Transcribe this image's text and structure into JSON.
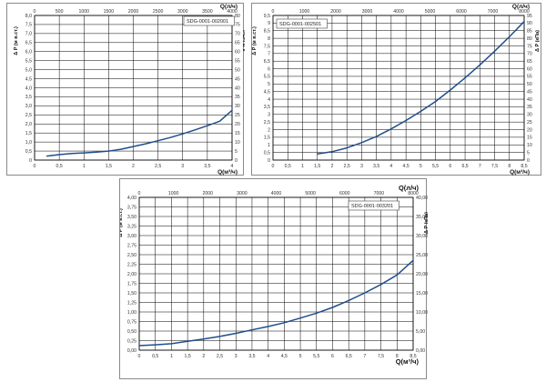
{
  "chart_data": [
    {
      "type": "line",
      "code": "SDG-0001-002001",
      "xlabel": "Q(м³/ч)",
      "x2label": "Q(л/ч)",
      "ylabel": "Δ P (м в.ст.)",
      "y2label": "Δ P (кПа)",
      "xlim": [
        0,
        4
      ],
      "x2lim": [
        0,
        4000
      ],
      "ylim": [
        0,
        8
      ],
      "y2lim": [
        0,
        80
      ],
      "x_ticks": [
        "0",
        "0,5",
        "1",
        "1,5",
        "2",
        "2,5",
        "3",
        "3,5",
        "4"
      ],
      "x2_ticks": [
        "0",
        "500",
        "1000",
        "1500",
        "2000",
        "2500",
        "3000",
        "3500",
        "4000"
      ],
      "y_ticks": [
        "0",
        "0,5",
        "1,0",
        "1,5",
        "2,0",
        "2,5",
        "3,0",
        "3,5",
        "4,0",
        "4,5",
        "5,0",
        "5,5",
        "6,0",
        "6,5",
        "7,0",
        "7,5",
        "8,0"
      ],
      "y2_ticks": [
        "0",
        "5",
        "10",
        "15",
        "20",
        "25",
        "30",
        "35",
        "40",
        "45",
        "50",
        "55",
        "60",
        "65",
        "70",
        "75",
        "80"
      ],
      "series": [
        {
          "x": [
            0.25,
            0.5,
            0.75,
            1.0,
            1.25,
            1.5,
            1.75,
            2.0,
            2.25,
            2.5,
            2.75,
            3.0,
            3.25,
            3.5,
            3.75,
            4.0
          ],
          "y": [
            0.22,
            0.3,
            0.36,
            0.4,
            0.44,
            0.5,
            0.6,
            0.75,
            0.9,
            1.07,
            1.25,
            1.45,
            1.67,
            1.9,
            2.15,
            2.75
          ]
        }
      ]
    },
    {
      "type": "line",
      "code": "SDG-0001-002501",
      "xlabel": "Q(м³/ч)",
      "x2label": "Q(л/ч)",
      "ylabel": "Δ P (м в.ст.)",
      "y2label": "Δ P (кПа)",
      "xlim": [
        0,
        8.5
      ],
      "x2lim": [
        0,
        8500
      ],
      "ylim": [
        0,
        9.5
      ],
      "y2lim": [
        0,
        95
      ],
      "x_ticks": [
        "0",
        "0,5",
        "1",
        "1,5",
        "2",
        "2,5",
        "3",
        "3,5",
        "4",
        "4,5",
        "5",
        "5,5",
        "6",
        "6,5",
        "7",
        "7,5",
        "8",
        "8,5"
      ],
      "x2_ticks": [
        "0",
        "1000",
        "2000",
        "3000",
        "4000",
        "5000",
        "6000",
        "7000",
        "8000"
      ],
      "y_ticks": [
        "0",
        "0,5",
        "1",
        "1,5",
        "2",
        "2,5",
        "3",
        "3,5",
        "4",
        "4,5",
        "5",
        "5,5",
        "6",
        "6,5",
        "7",
        "7,5",
        "8",
        "8,5",
        "9",
        "9,5"
      ],
      "y2_ticks": [
        "0",
        "5",
        "10",
        "15",
        "20",
        "25",
        "30",
        "35",
        "40",
        "45",
        "50",
        "55",
        "60",
        "65",
        "70",
        "75",
        "80",
        "85",
        "90",
        "95"
      ],
      "series": [
        {
          "x": [
            1.5,
            2.0,
            2.5,
            3.0,
            3.5,
            4.0,
            4.5,
            5.0,
            5.5,
            6.0,
            6.5,
            7.0,
            7.5,
            8.0,
            8.5
          ],
          "y": [
            0.4,
            0.55,
            0.8,
            1.15,
            1.55,
            2.05,
            2.6,
            3.2,
            3.85,
            4.6,
            5.4,
            6.25,
            7.15,
            8.1,
            9.1
          ]
        }
      ]
    },
    {
      "type": "line",
      "code": "SDG-0001-003201",
      "xlabel": "Q(м³/ч)",
      "x2label": "Q(л/ч)",
      "ylabel": "Δ P (м в.ст.)",
      "y2label": "Δ P (кПа)",
      "xlim": [
        0,
        8.5
      ],
      "x2lim": [
        0,
        8500
      ],
      "ylim": [
        0,
        4
      ],
      "y2lim": [
        0,
        40
      ],
      "x_ticks": [
        "0",
        "0,5",
        "1",
        "1,5",
        "2",
        "2,5",
        "3",
        "3,5",
        "4",
        "4,5",
        "5",
        "5,5",
        "6",
        "6,5",
        "7",
        "7,5",
        "8",
        "8,5"
      ],
      "x2_ticks": [
        "0",
        "1000",
        "2000",
        "3000",
        "4000",
        "5000",
        "6000",
        "7000",
        "8000"
      ],
      "y_ticks": [
        "0,00",
        "0,25",
        "0,50",
        "0,75",
        "1,00",
        "1,25",
        "1,50",
        "1,75",
        "2,00",
        "2,25",
        "2,50",
        "2,75",
        "3,00",
        "3,25",
        "3,50",
        "3,75",
        "4,00"
      ],
      "y2_ticks": [
        "0,00",
        "",
        "5,00",
        "",
        "10,00",
        "",
        "15,00",
        "",
        "20,00",
        "",
        "25,00",
        "",
        "30,00",
        "",
        "35,00",
        "",
        "40,00"
      ],
      "series": [
        {
          "x": [
            0,
            0.5,
            1.0,
            1.5,
            2.0,
            2.5,
            3.0,
            3.5,
            4.0,
            4.5,
            5.0,
            5.5,
            6.0,
            6.5,
            7.0,
            7.5,
            8.0,
            8.5
          ],
          "y": [
            0.12,
            0.14,
            0.17,
            0.23,
            0.29,
            0.36,
            0.44,
            0.53,
            0.62,
            0.72,
            0.84,
            0.97,
            1.12,
            1.3,
            1.5,
            1.72,
            1.97,
            2.35
          ]
        }
      ]
    }
  ]
}
